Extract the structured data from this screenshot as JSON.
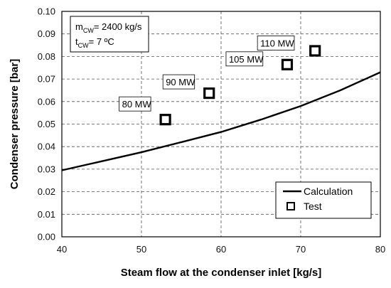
{
  "chart_data": {
    "type": "scatter",
    "title": "",
    "xlabel": "Steam flow at the condenser inlet [kg/s]",
    "ylabel": "Condenser pressure [bar]",
    "xlim": [
      40,
      80
    ],
    "ylim": [
      0,
      0.1
    ],
    "x_ticks": [
      40,
      50,
      60,
      70,
      80
    ],
    "y_ticks": [
      0.0,
      0.01,
      0.02,
      0.03,
      0.04,
      0.05,
      0.06,
      0.07,
      0.08,
      0.09,
      0.1
    ],
    "x_tick_labels": [
      "40",
      "50",
      "60",
      "70",
      "80"
    ],
    "y_tick_labels": [
      "0.00",
      "0.01",
      "0.02",
      "0.03",
      "0.04",
      "0.05",
      "0.06",
      "0.07",
      "0.08",
      "0.09",
      "0.10"
    ],
    "grid": "dashed",
    "legend_position": "bottom-right",
    "series": [
      {
        "name": "Calculation",
        "kind": "line",
        "color": "#000000",
        "x": [
          40,
          45,
          50,
          55,
          60,
          65,
          70,
          75,
          80
        ],
        "y": [
          0.0295,
          0.0335,
          0.0375,
          0.042,
          0.0465,
          0.052,
          0.058,
          0.065,
          0.073
        ]
      },
      {
        "name": "Test",
        "kind": "marker",
        "marker": "square-open",
        "color": "#000000",
        "x": [
          53.0,
          58.5,
          68.3,
          71.8
        ],
        "y": [
          0.052,
          0.0637,
          0.0764,
          0.0825
        ],
        "labels": [
          "80 MW",
          "90 MW",
          "105 MW",
          "110 MW"
        ]
      }
    ],
    "annotation": {
      "line1_main": "m",
      "line1_sub": "CW",
      "line1_rest": "= 2400 kg/s",
      "line2_main": "t",
      "line2_sub": "CW",
      "line2_rest": "= 7 ºC"
    }
  }
}
